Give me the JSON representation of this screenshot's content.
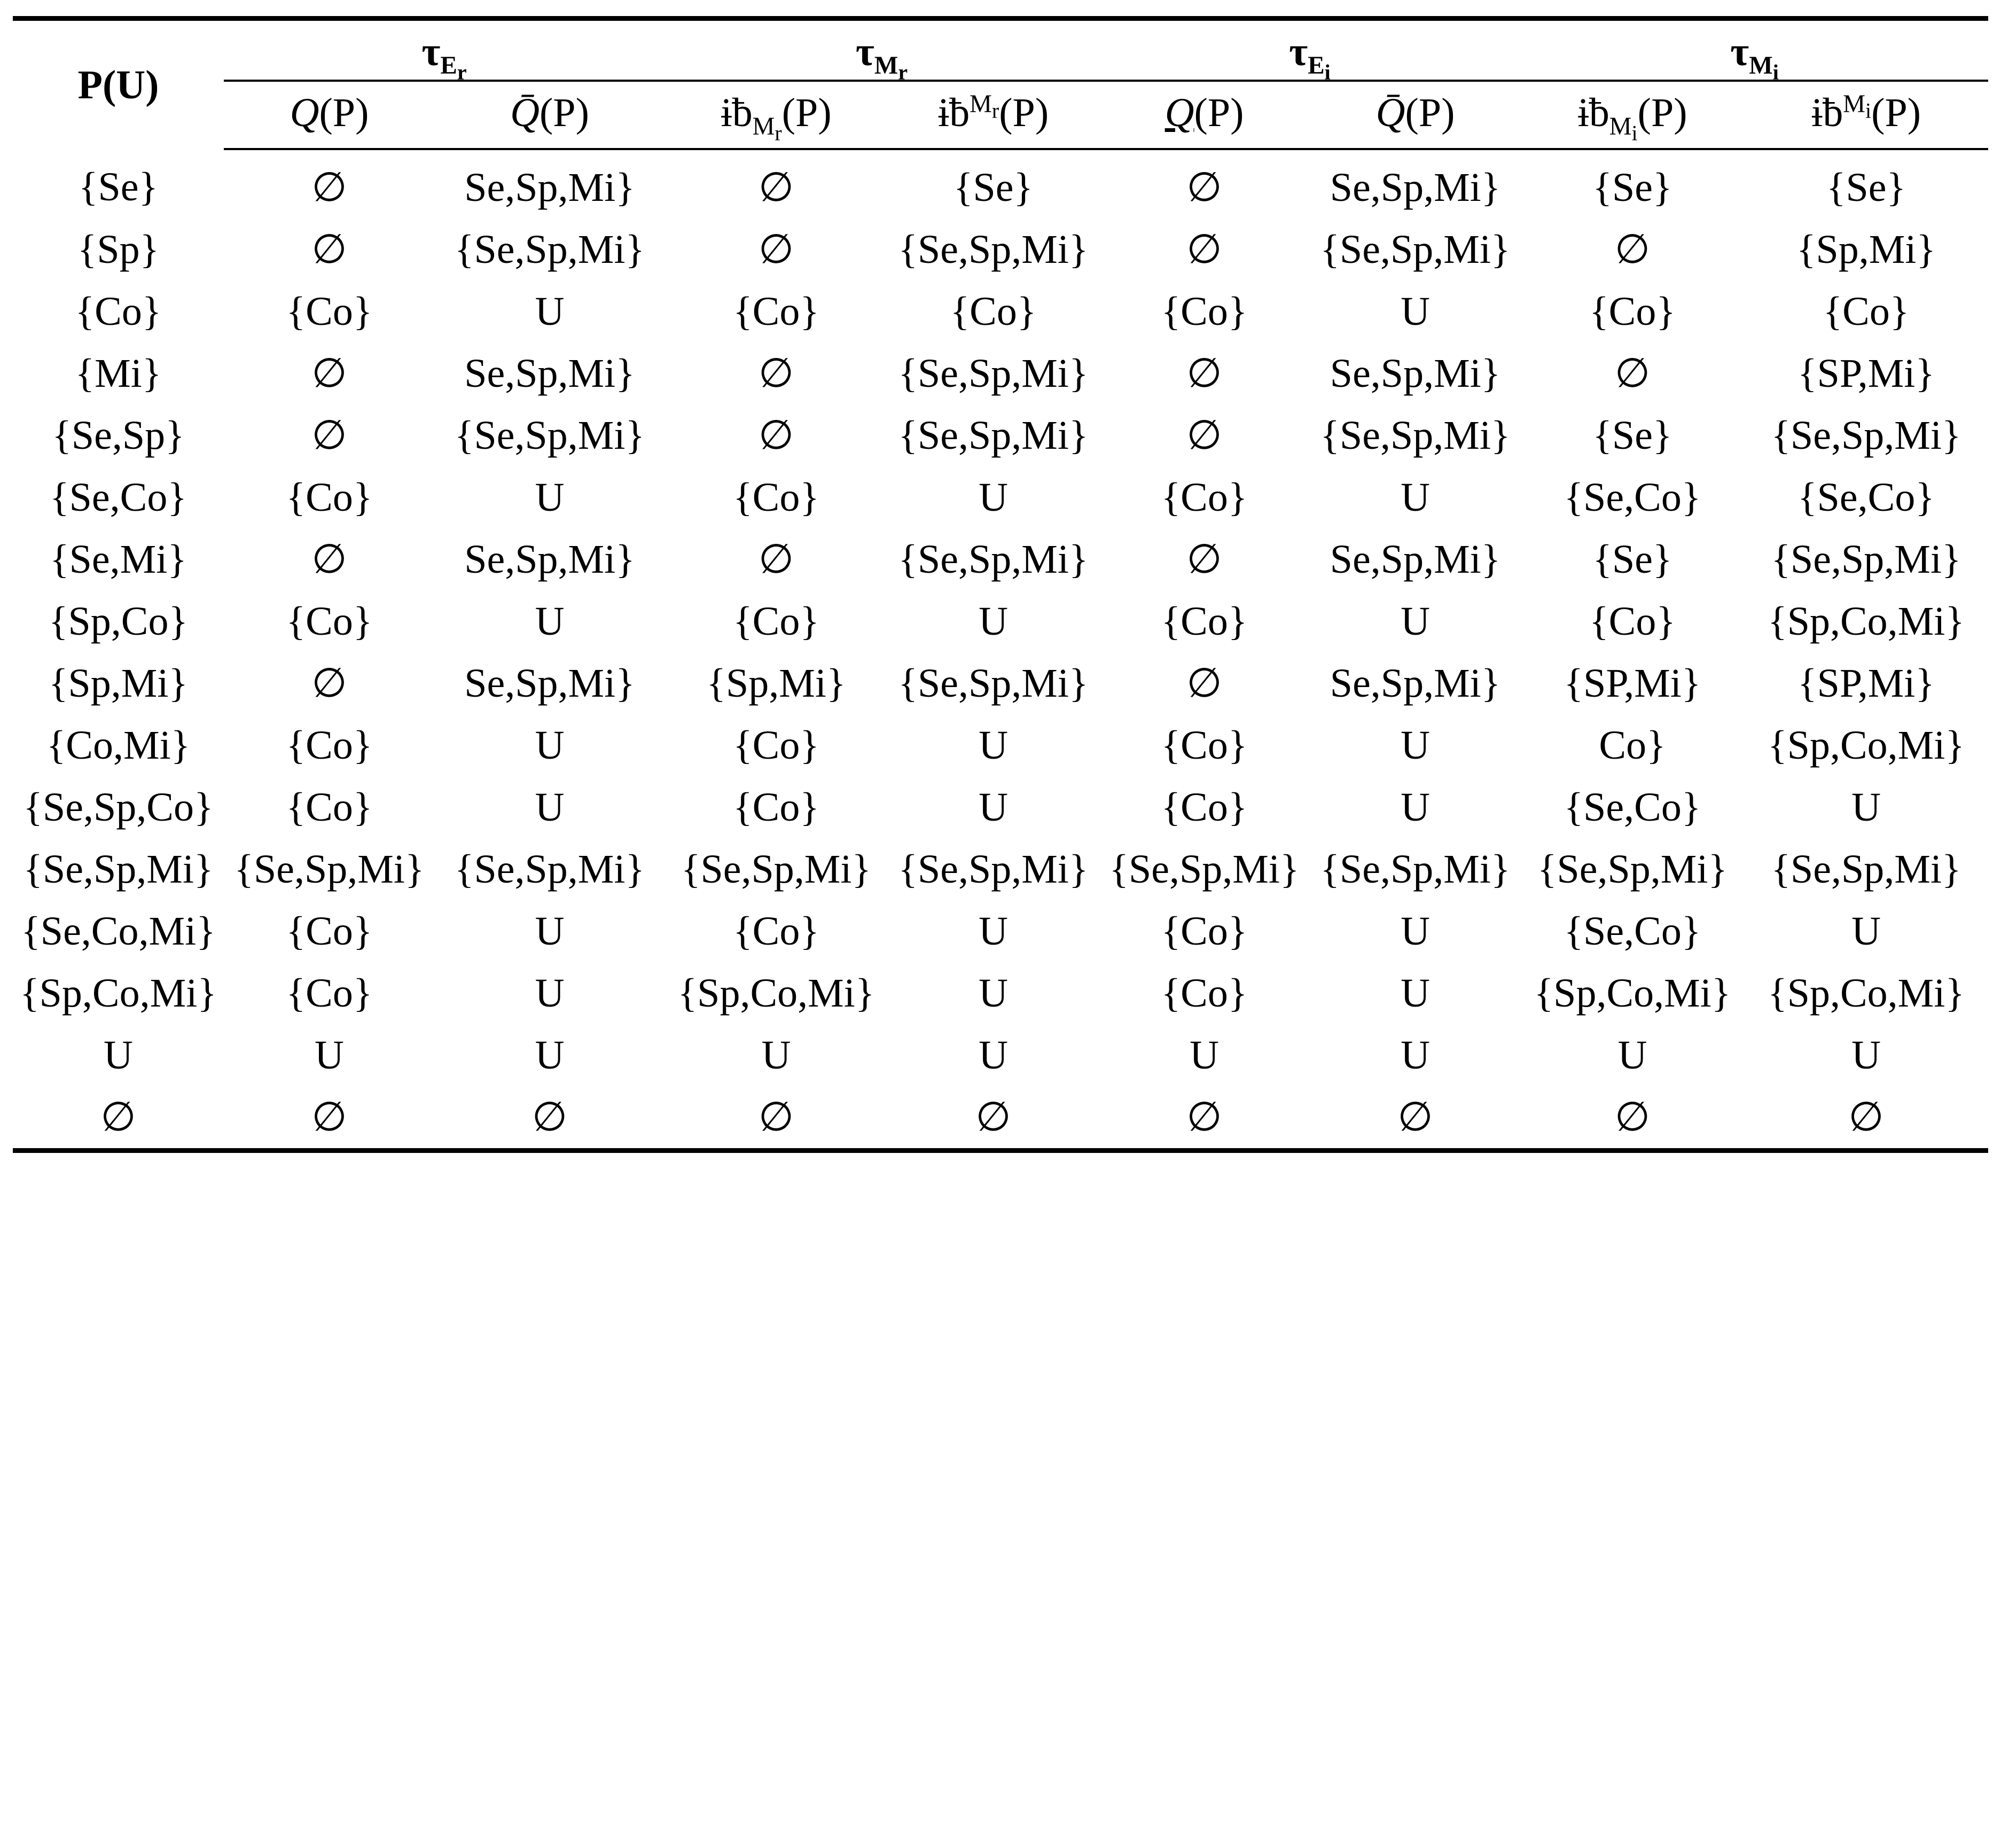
{
  "header": {
    "row_label": "P(U)",
    "groups": [
      {
        "symbol": "τ",
        "sub": "E",
        "subsub": "r"
      },
      {
        "symbol": "τ",
        "sub": "M",
        "subsub": "r"
      },
      {
        "symbol": "τ",
        "sub": "E",
        "subsub": "i"
      },
      {
        "symbol": "τ",
        "sub": "M",
        "subsub": "i"
      }
    ],
    "columns": [
      {
        "symbol": "Q",
        "arg": "(P)"
      },
      {
        "symbol": "Q̄",
        "arg": "(P)"
      },
      {
        "symbol": "ɨƀ",
        "sub": "M",
        "subsub": "r",
        "arg": "(P)"
      },
      {
        "symbol": "ɨƀ",
        "sup": "M",
        "supsub": "r",
        "arg": "(P)"
      },
      {
        "symbol": "Q",
        "arg": "(P)",
        "underline": true
      },
      {
        "symbol": "Q̄",
        "arg": "(P)"
      },
      {
        "symbol": "ɨƀ",
        "sub": "M",
        "subsub": "i",
        "arg": "(P)"
      },
      {
        "symbol": "ɨƀ",
        "sup": "M",
        "supsub": "i",
        "arg": "(P)"
      }
    ]
  },
  "table": {
    "rows": [
      [
        "{Se}",
        "∅",
        "Se,Sp,Mi}",
        "∅",
        "{Se}",
        "∅",
        "Se,Sp,Mi}",
        "{Se}",
        "{Se}"
      ],
      [
        "{Sp}",
        "∅",
        "{Se,Sp,Mi}",
        "∅",
        "{Se,Sp,Mi}",
        "∅",
        "{Se,Sp,Mi}",
        "∅",
        "{Sp,Mi}"
      ],
      [
        "{Co}",
        "{Co}",
        "U",
        "{Co}",
        "{Co}",
        "{Co}",
        "U",
        "{Co}",
        "{Co}"
      ],
      [
        "{Mi}",
        "∅",
        "Se,Sp,Mi}",
        "∅",
        "{Se,Sp,Mi}",
        "∅",
        "Se,Sp,Mi}",
        "∅",
        "{SP,Mi}"
      ],
      [
        "{Se,Sp}",
        "∅",
        "{Se,Sp,Mi}",
        "∅",
        "{Se,Sp,Mi}",
        "∅",
        "{Se,Sp,Mi}",
        "{Se}",
        "{Se,Sp,Mi}"
      ],
      [
        "{Se,Co}",
        "{Co}",
        "U",
        "{Co}",
        "U",
        "{Co}",
        "U",
        "{Se,Co}",
        "{Se,Co}"
      ],
      [
        "{Se,Mi}",
        "∅",
        "Se,Sp,Mi}",
        "∅",
        "{Se,Sp,Mi}",
        "∅",
        "Se,Sp,Mi}",
        "{Se}",
        "{Se,Sp,Mi}"
      ],
      [
        "{Sp,Co}",
        "{Co}",
        "U",
        "{Co}",
        "U",
        "{Co}",
        "U",
        "{Co}",
        "{Sp,Co,Mi}"
      ],
      [
        "{Sp,Mi}",
        "∅",
        "Se,Sp,Mi}",
        "{Sp,Mi}",
        "{Se,Sp,Mi}",
        "∅",
        "Se,Sp,Mi}",
        "{SP,Mi}",
        "{SP,Mi}"
      ],
      [
        "{Co,Mi}",
        "{Co}",
        "U",
        "{Co}",
        "U",
        "{Co}",
        "U",
        "Co}",
        "{Sp,Co,Mi}"
      ],
      [
        "{Se,Sp,Co}",
        "{Co}",
        "U",
        "{Co}",
        "U",
        "{Co}",
        "U",
        "{Se,Co}",
        "U"
      ],
      [
        "{Se,Sp,Mi}",
        "{Se,Sp,Mi}",
        "{Se,Sp,Mi}",
        "{Se,Sp,Mi}",
        "{Se,Sp,Mi}",
        "{Se,Sp,Mi}",
        "{Se,Sp,Mi}",
        "{Se,Sp,Mi}",
        "{Se,Sp,Mi}"
      ],
      [
        "{Se,Co,Mi}",
        "{Co}",
        "U",
        "{Co}",
        "U",
        "{Co}",
        "U",
        "{Se,Co}",
        "U"
      ],
      [
        "{Sp,Co,Mi}",
        "{Co}",
        "U",
        "{Sp,Co,Mi}",
        "U",
        "{Co}",
        "U",
        "{Sp,Co,Mi}",
        "{Sp,Co,Mi}"
      ],
      [
        "U",
        "U",
        "U",
        "U",
        "U",
        "U",
        "U",
        "U",
        "U"
      ],
      [
        "∅",
        "∅",
        "∅",
        "∅",
        "∅",
        "∅",
        "∅",
        "∅",
        "∅"
      ]
    ]
  }
}
